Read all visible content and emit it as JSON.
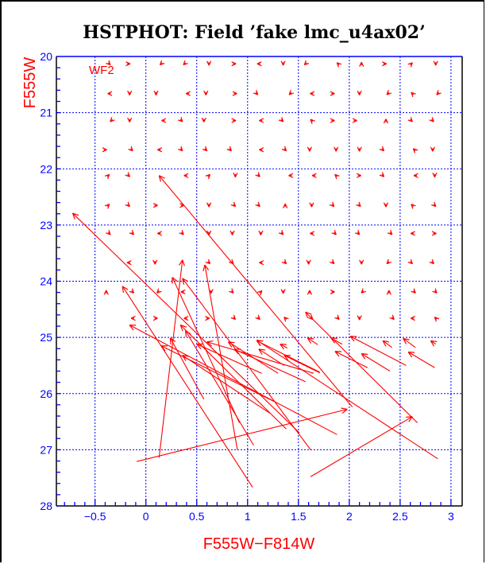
{
  "chart_data": {
    "type": "scatter",
    "subtype": "vector-field",
    "title": "HSTPHOT: Field ’fake lmc_u4ax02’",
    "xlabel": "F555W−F814W",
    "ylabel": "F555W",
    "annotation": "WF2",
    "xlim": [
      -0.88,
      3.11
    ],
    "ylim": [
      28,
      20
    ],
    "y_inverted": true,
    "grid": true,
    "xticks": [
      -0.5,
      0,
      0.5,
      1,
      1.5,
      2,
      2.5,
      3
    ],
    "xtick_labels": [
      "−0.5",
      "0",
      "0.5",
      "1",
      "1.5",
      "2",
      "2.5",
      "3"
    ],
    "yticks": [
      20,
      21,
      22,
      23,
      24,
      25,
      26,
      27,
      28
    ],
    "ytick_labels": [
      "20",
      "21",
      "22",
      "23",
      "24",
      "25",
      "26",
      "27",
      "28"
    ],
    "colors": {
      "marks": "#ff0000",
      "grid": "#0000ff",
      "axes": "#000000",
      "ticks": "#0000ff"
    },
    "small_arrows_note": "rows of [x, direction_deg] at given magnitude y; direction 0=right, 90=up",
    "small_arrow_rows": [
      {
        "y": 20.13,
        "points": [
          [
            -0.36,
            315
          ],
          [
            -0.17,
            0
          ],
          [
            0.15,
            225
          ],
          [
            0.38,
            225
          ],
          [
            0.62,
            270
          ],
          [
            0.87,
            0
          ],
          [
            1.11,
            180
          ],
          [
            1.35,
            270
          ],
          [
            1.57,
            225
          ],
          [
            1.89,
            135
          ],
          [
            2.12,
            90
          ],
          [
            2.35,
            0
          ],
          [
            2.61,
            45
          ],
          [
            2.85,
            270
          ]
        ]
      },
      {
        "y": 20.66,
        "points": [
          [
            -0.36,
            180
          ],
          [
            -0.16,
            270
          ],
          [
            0.1,
            270
          ],
          [
            0.41,
            180
          ],
          [
            0.59,
            270
          ],
          [
            0.88,
            0
          ],
          [
            1.09,
            315
          ],
          [
            1.42,
            225
          ],
          [
            1.63,
            180
          ],
          [
            1.84,
            0
          ],
          [
            2.1,
            270
          ],
          [
            2.38,
            225
          ],
          [
            2.62,
            135
          ],
          [
            2.87,
            225
          ]
        ]
      },
      {
        "y": 21.14,
        "points": [
          [
            -0.34,
            225
          ],
          [
            -0.16,
            270
          ],
          [
            0.17,
            180
          ],
          [
            0.35,
            315
          ],
          [
            0.57,
            270
          ],
          [
            0.87,
            0
          ],
          [
            1.13,
            180
          ],
          [
            1.34,
            315
          ],
          [
            1.63,
            135
          ],
          [
            1.84,
            0
          ],
          [
            2.06,
            0
          ],
          [
            2.36,
            90
          ],
          [
            2.61,
            315
          ],
          [
            2.82,
            315
          ]
        ]
      },
      {
        "y": 21.66,
        "points": [
          [
            -0.4,
            0
          ],
          [
            -0.14,
            315
          ],
          [
            0.13,
            180
          ],
          [
            0.35,
            315
          ],
          [
            0.59,
            315
          ],
          [
            0.83,
            315
          ],
          [
            1.13,
            180
          ],
          [
            1.37,
            315
          ],
          [
            1.61,
            270
          ],
          [
            1.87,
            270
          ],
          [
            2.1,
            270
          ],
          [
            2.33,
            315
          ],
          [
            2.64,
            135
          ],
          [
            2.82,
            270
          ]
        ]
      },
      {
        "y": 22.12,
        "points": [
          [
            -0.37,
            45
          ],
          [
            -0.17,
            315
          ],
          [
            0.39,
            180
          ],
          [
            0.62,
            45
          ],
          [
            0.88,
            270
          ],
          [
            1.11,
            315
          ],
          [
            1.42,
            180
          ],
          [
            1.65,
            180
          ],
          [
            1.87,
            135
          ],
          [
            2.1,
            0
          ],
          [
            2.33,
            315
          ],
          [
            2.65,
            180
          ],
          [
            2.84,
            270
          ]
        ]
      },
      {
        "y": 22.65,
        "points": [
          [
            -0.37,
            45
          ],
          [
            -0.17,
            315
          ],
          [
            0.1,
            0
          ],
          [
            0.36,
            0
          ],
          [
            0.62,
            270
          ],
          [
            0.87,
            315
          ],
          [
            1.11,
            315
          ],
          [
            1.37,
            90
          ],
          [
            1.63,
            270
          ],
          [
            1.84,
            315
          ],
          [
            2.1,
            315
          ],
          [
            2.36,
            270
          ],
          [
            2.62,
            135
          ],
          [
            2.84,
            315
          ]
        ]
      },
      {
        "y": 23.15,
        "points": [
          [
            -0.36,
            315
          ],
          [
            -0.13,
            315
          ],
          [
            0.13,
            180
          ],
          [
            0.36,
            315
          ],
          [
            0.62,
            270
          ],
          [
            0.85,
            270
          ],
          [
            1.13,
            270
          ],
          [
            1.34,
            315
          ],
          [
            1.63,
            180
          ],
          [
            1.86,
            315
          ],
          [
            2.09,
            315
          ],
          [
            2.41,
            315
          ],
          [
            2.62,
            180
          ],
          [
            2.84,
            0
          ]
        ]
      },
      {
        "y": 23.67,
        "points": [
          [
            -0.17,
            180
          ],
          [
            0.09,
            270
          ],
          [
            0.62,
            315
          ],
          [
            0.85,
            315
          ],
          [
            1.13,
            180
          ],
          [
            1.37,
            315
          ],
          [
            1.6,
            270
          ],
          [
            1.84,
            315
          ],
          [
            2.12,
            270
          ],
          [
            2.38,
            225
          ],
          [
            2.61,
            315
          ],
          [
            2.82,
            315
          ]
        ]
      },
      {
        "y": 24.19,
        "points": [
          [
            -0.39,
            90
          ],
          [
            -0.13,
            315
          ],
          [
            0.12,
            225
          ],
          [
            0.36,
            180
          ],
          [
            0.64,
            270
          ],
          [
            0.85,
            315
          ],
          [
            1.13,
            45
          ],
          [
            1.35,
            270
          ],
          [
            1.61,
            90
          ],
          [
            1.84,
            0
          ],
          [
            2.13,
            225
          ],
          [
            2.39,
            90
          ],
          [
            2.64,
            315
          ],
          [
            2.85,
            315
          ]
        ]
      },
      {
        "y": 24.66,
        "points": [
          [
            -0.13,
            180
          ],
          [
            0.1,
            0
          ],
          [
            0.39,
            180
          ],
          [
            0.61,
            0
          ],
          [
            0.87,
            315
          ],
          [
            1.11,
            315
          ],
          [
            1.37,
            135
          ],
          [
            1.63,
            315
          ],
          [
            1.89,
            315
          ],
          [
            2.1,
            270
          ],
          [
            2.43,
            315
          ],
          [
            2.62,
            180
          ],
          [
            2.85,
            135
          ]
        ]
      }
    ],
    "vectors_note": "each [x_from, y_from, x_to, y_to]; arrowhead at the 'to' end",
    "vectors": [
      [
        2.03,
        26.24,
        0.13,
        22.12
      ],
      [
        1.51,
        26.7,
        -0.72,
        22.79
      ],
      [
        1.62,
        27.0,
        0.36,
        23.95
      ],
      [
        1.05,
        27.67,
        -0.23,
        24.09
      ],
      [
        0.13,
        27.14,
        0.36,
        23.62
      ],
      [
        0.9,
        27.0,
        0.58,
        23.71
      ],
      [
        0.92,
        26.52,
        0.26,
        23.93
      ],
      [
        1.88,
        26.73,
        -0.16,
        24.78
      ],
      [
        2.67,
        26.52,
        1.57,
        24.55
      ],
      [
        2.87,
        27.16,
        1.09,
        25.05
      ],
      [
        -0.09,
        27.21,
        1.98,
        26.28
      ],
      [
        1.62,
        27.48,
        2.62,
        26.41
      ],
      [
        0.57,
        26.1,
        0.24,
        25.01
      ],
      [
        1.71,
        25.62,
        1.09,
        25.06
      ],
      [
        1.36,
        25.5,
        1.11,
        25.21
      ],
      [
        1.71,
        25.63,
        1.36,
        25.32
      ],
      [
        2.18,
        25.54,
        1.86,
        25.25
      ],
      [
        2.4,
        25.6,
        2.12,
        25.29
      ],
      [
        2.84,
        25.54,
        2.58,
        25.26
      ],
      [
        2.56,
        25.5,
        2.01,
        24.98
      ],
      [
        1.38,
        26.63,
        0.34,
        24.78
      ],
      [
        1.06,
        26.92,
        0.39,
        24.88
      ],
      [
        1.26,
        26.14,
        0.15,
        25.15
      ],
      [
        1.22,
        26.35,
        0.36,
        25.32
      ],
      [
        1.14,
        25.64,
        0.5,
        25.12
      ],
      [
        1.65,
        25.64,
        0.6,
        25.08
      ],
      [
        1.3,
        25.64,
        0.81,
        25.08
      ],
      [
        1.57,
        25.79,
        0.87,
        25.21
      ],
      [
        1.69,
        25.13,
        1.59,
        25.01
      ],
      [
        1.93,
        25.12,
        1.82,
        25.01
      ],
      [
        2.42,
        25.18,
        2.33,
        25.06
      ],
      [
        2.65,
        25.18,
        2.53,
        25.02
      ],
      [
        2.85,
        25.12,
        2.8,
        25.06
      ],
      [
        1.39,
        25.19,
        1.32,
        25.12
      ]
    ]
  }
}
